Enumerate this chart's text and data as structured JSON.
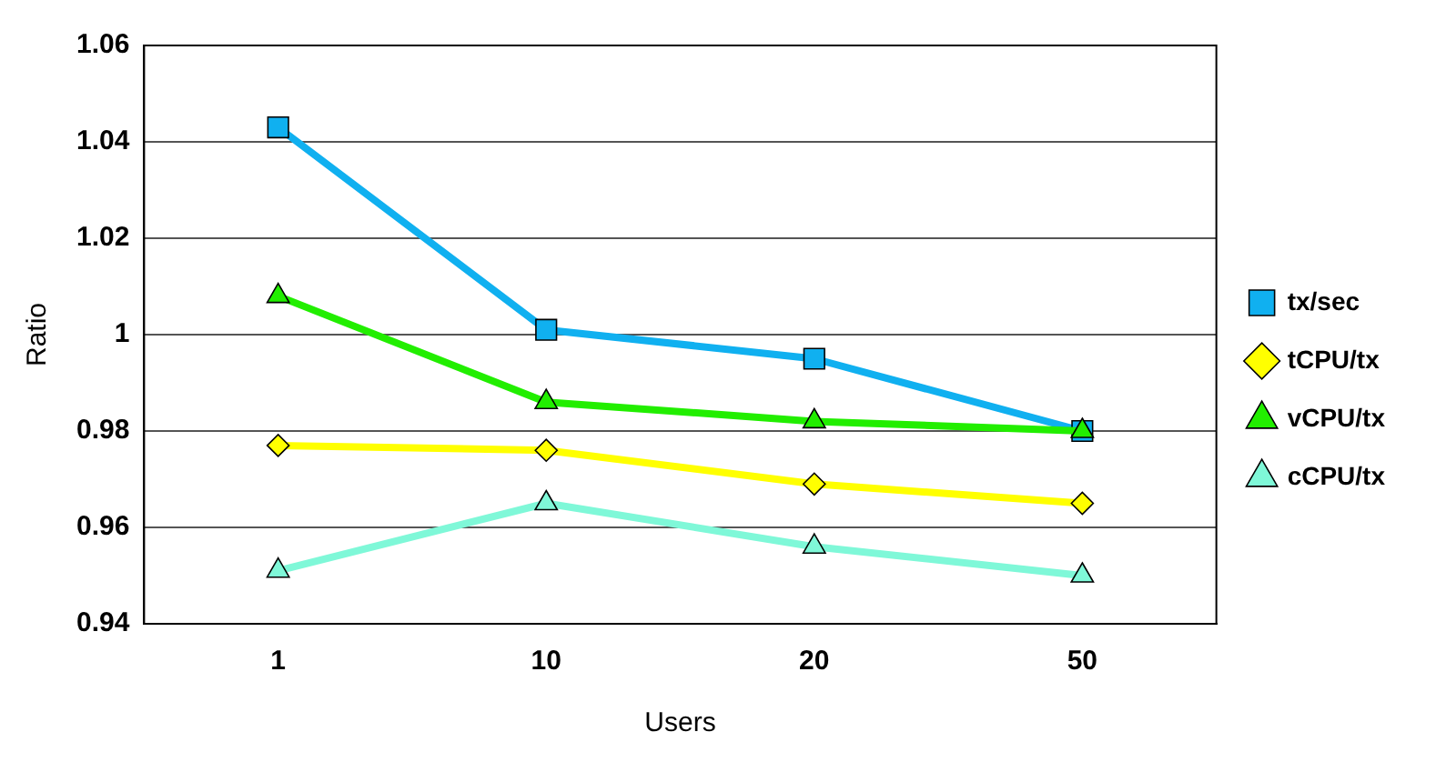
{
  "chart_data": {
    "type": "line",
    "xlabel": "Users",
    "ylabel": "Ratio",
    "categories": [
      "1",
      "10",
      "20",
      "50"
    ],
    "ylim": [
      0.94,
      1.06
    ],
    "yticks": [
      0.94,
      0.96,
      0.98,
      1,
      1.02,
      1.04,
      1.06
    ],
    "grid": "y",
    "legend": "right",
    "series": [
      {
        "name": "tx/sec",
        "color": "#10b0f0",
        "marker": "square",
        "values": [
          1.043,
          1.001,
          0.995,
          0.98
        ]
      },
      {
        "name": "tCPU/tx",
        "color": "#ffff00",
        "marker": "diamond",
        "values": [
          0.977,
          0.976,
          0.969,
          0.965
        ]
      },
      {
        "name": "vCPU/tx",
        "color": "#22ee00",
        "marker": "triangle",
        "values": [
          1.008,
          0.986,
          0.982,
          0.98
        ]
      },
      {
        "name": "cCPU/tx",
        "color": "#7ff8d8",
        "marker": "triangle",
        "values": [
          0.951,
          0.965,
          0.956,
          0.95
        ]
      }
    ]
  }
}
